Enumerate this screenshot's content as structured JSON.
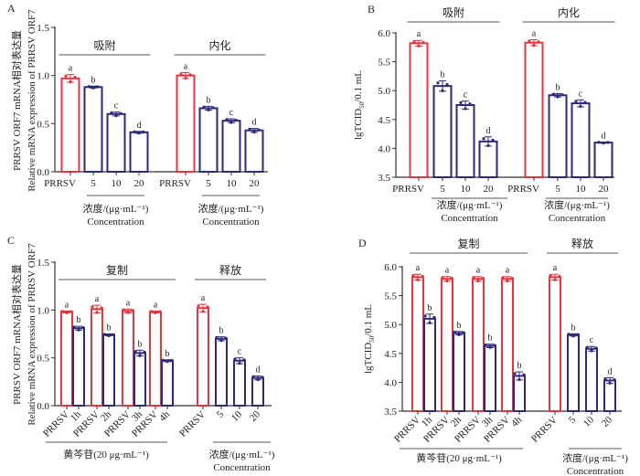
{
  "colors": {
    "control": "#e8343f",
    "treated": "#2e2a7a",
    "axis": "#333333",
    "bracket": "#555555"
  },
  "chart_data": [
    {
      "panel": "A",
      "type": "bar",
      "ylabel_lines": [
        "PRRSV ORF7 mRNA相对表达量",
        "Relative mRNA expression of PRRSV ORF7"
      ],
      "ylim": [
        0.0,
        1.5
      ],
      "yticks": [
        "0.0",
        "0.5",
        "1.0",
        "1.5"
      ],
      "groups": [
        {
          "label": "吸附",
          "categories": [
            "PRRSV",
            "5",
            "10",
            "20"
          ],
          "values": [
            0.97,
            0.88,
            0.6,
            0.41
          ],
          "errors": [
            0.04,
            0.01,
            0.02,
            0.01
          ],
          "letters": [
            "a",
            "b",
            "c",
            "d"
          ],
          "kinds": [
            "control",
            "treated",
            "treated",
            "treated"
          ],
          "sub_label": [
            "浓度/(μg·mL⁻¹)",
            "Concentration"
          ]
        },
        {
          "label": "内化",
          "categories": [
            "PRRSV",
            "5",
            "10",
            "20"
          ],
          "values": [
            1.0,
            0.66,
            0.53,
            0.43
          ],
          "errors": [
            0.03,
            0.02,
            0.02,
            0.02
          ],
          "letters": [
            "a",
            "b",
            "c",
            "d"
          ],
          "kinds": [
            "control",
            "treated",
            "treated",
            "treated"
          ],
          "sub_label": [
            "浓度/(μg·mL⁻¹)",
            "Concentration"
          ]
        }
      ]
    },
    {
      "panel": "B",
      "type": "bar",
      "ylabel": "lgTCID50/0.1 mL",
      "ylim": [
        3.5,
        6.0
      ],
      "yticks": [
        "3.5",
        "4.0",
        "4.5",
        "5.0",
        "5.5",
        "6.0"
      ],
      "groups": [
        {
          "label": "吸附",
          "categories": [
            "PRRSV",
            "5",
            "10",
            "20"
          ],
          "values": [
            5.82,
            5.08,
            4.75,
            4.12
          ],
          "errors": [
            0.05,
            0.09,
            0.07,
            0.08
          ],
          "letters": [
            "a",
            "b",
            "c",
            "d"
          ],
          "kinds": [
            "control",
            "treated",
            "treated",
            "treated"
          ],
          "sub_label": [
            "浓度/(μg·mL⁻¹)",
            "Concentration"
          ]
        },
        {
          "label": "内化",
          "categories": [
            "PRRSV",
            "5",
            "10",
            "20"
          ],
          "values": [
            5.83,
            4.92,
            4.78,
            4.1
          ],
          "errors": [
            0.05,
            0.03,
            0.06,
            0.01
          ],
          "letters": [
            "a",
            "b",
            "c",
            "d"
          ],
          "kinds": [
            "control",
            "treated",
            "treated",
            "treated"
          ],
          "sub_label": [
            "浓度/(μg·mL⁻¹)",
            "Concentration"
          ]
        }
      ]
    },
    {
      "panel": "C",
      "type": "bar",
      "ylabel_lines": [
        "PRRSV ORF7 mRNA相对表达量",
        "Relative mRNA expression of PRRSV ORF7"
      ],
      "ylim": [
        0.0,
        1.5
      ],
      "yticks": [
        "0.0",
        "0.5",
        "1.0",
        "1.5"
      ],
      "groups": [
        {
          "label": "复制",
          "categories": [
            "PRRSV",
            "1h",
            "PRRSV",
            "2h",
            "PRRSV",
            "3h",
            "PRRSV",
            "4h"
          ],
          "values": [
            0.98,
            0.81,
            1.01,
            0.74,
            0.99,
            0.55,
            0.98,
            0.47
          ],
          "errors": [
            0.01,
            0.02,
            0.04,
            0.01,
            0.02,
            0.03,
            0.01,
            0.01
          ],
          "letters": [
            "a",
            "b",
            "a",
            "b",
            "a",
            "b",
            "a",
            "b"
          ],
          "kinds": [
            "control",
            "treated",
            "control",
            "treated",
            "control",
            "treated",
            "control",
            "treated"
          ],
          "sub_label": [
            "黄芩苷(20 μg·mL⁻¹)"
          ]
        },
        {
          "label": "释放",
          "categories": [
            "PRRSV",
            "5",
            "10",
            "20"
          ],
          "values": [
            1.02,
            0.7,
            0.47,
            0.29
          ],
          "errors": [
            0.04,
            0.02,
            0.03,
            0.02
          ],
          "letters": [
            "a",
            "b",
            "c",
            "d"
          ],
          "kinds": [
            "control",
            "treated",
            "treated",
            "treated"
          ],
          "sub_label": [
            "浓度/(μg·mL⁻¹)",
            "Concentration"
          ]
        }
      ]
    },
    {
      "panel": "D",
      "type": "bar",
      "ylabel": "lgTCID50/0.1 mL",
      "ylim": [
        3.5,
        6.0
      ],
      "yticks": [
        "3.5",
        "4.0",
        "4.5",
        "5.0",
        "5.5",
        "6.0"
      ],
      "groups": [
        {
          "label": "复制",
          "categories": [
            "PRRSV",
            "1h",
            "PRRSV",
            "2h",
            "PRRSV",
            "3h",
            "PRRSV",
            "4h"
          ],
          "values": [
            5.82,
            5.1,
            5.79,
            4.85,
            5.79,
            4.63,
            5.79,
            4.11
          ],
          "errors": [
            0.05,
            0.08,
            0.04,
            0.03,
            0.04,
            0.03,
            0.04,
            0.07
          ],
          "letters": [
            "a",
            "b",
            "a",
            "b",
            "a",
            "b",
            "a",
            "b"
          ],
          "kinds": [
            "control",
            "treated",
            "control",
            "treated",
            "control",
            "treated",
            "control",
            "treated"
          ],
          "sub_label": [
            "黄芩苷(20 μg·mL⁻¹)"
          ]
        },
        {
          "label": "释放",
          "categories": [
            "PRRSV",
            "5",
            "10",
            "20"
          ],
          "values": [
            5.82,
            4.82,
            4.58,
            4.03
          ],
          "errors": [
            0.05,
            0.02,
            0.04,
            0.05
          ],
          "letters": [
            "a",
            "b",
            "c",
            "d"
          ],
          "kinds": [
            "control",
            "treated",
            "treated",
            "treated"
          ],
          "sub_label": [
            "浓度/(μg·mL⁻¹)",
            "Concentration"
          ]
        }
      ]
    }
  ]
}
